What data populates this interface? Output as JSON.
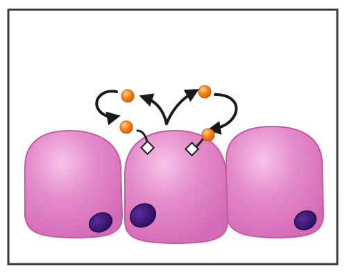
{
  "diagram": {
    "type": "autocrine-paracrine-signaling",
    "cells": [
      {
        "name": "left-cell",
        "role": "neighbor"
      },
      {
        "name": "center-cell",
        "role": "signaling"
      },
      {
        "name": "right-cell",
        "role": "neighbor"
      }
    ],
    "signal_molecules": 4,
    "receptors": 2
  },
  "colors": {
    "frame": "#3a3a3a",
    "background": "#ffffff",
    "cell_fill": "#e077c4",
    "cell_light": "#f2b6e0",
    "cell_edge": "#b44d97",
    "nucleus": "#3a1a6e",
    "nucleus_edge": "#1f0c45",
    "ligand": "#f07d1a",
    "ligand_light": "#ffc067",
    "arrow": "#1a1a1a",
    "receptor": "#ffffff"
  }
}
